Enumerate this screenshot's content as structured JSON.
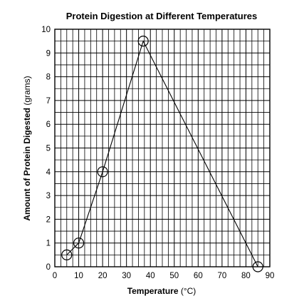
{
  "chart_data": {
    "type": "line",
    "title": "Protein Digestion at Different Temperatures",
    "xlabel_bold": "Temperature",
    "xlabel_unit": "(°C)",
    "ylabel_bold": "Amount of Protein Digested",
    "ylabel_unit": "(grams)",
    "xlim": [
      0,
      90
    ],
    "ylim": [
      0,
      10
    ],
    "x_ticks": [
      0,
      10,
      20,
      30,
      40,
      50,
      60,
      70,
      80,
      90
    ],
    "y_ticks": [
      0,
      1,
      2,
      3,
      4,
      5,
      6,
      7,
      8,
      9,
      10
    ],
    "grid": true,
    "grid_minor_step_x": 2.5,
    "grid_minor_step_y": 0.5,
    "marker": "open-circle",
    "line_color": "#000000",
    "series": [
      {
        "x": [
          5,
          10,
          20,
          37,
          85
        ],
        "y": [
          0.5,
          1,
          4,
          9.5,
          0
        ]
      }
    ]
  }
}
